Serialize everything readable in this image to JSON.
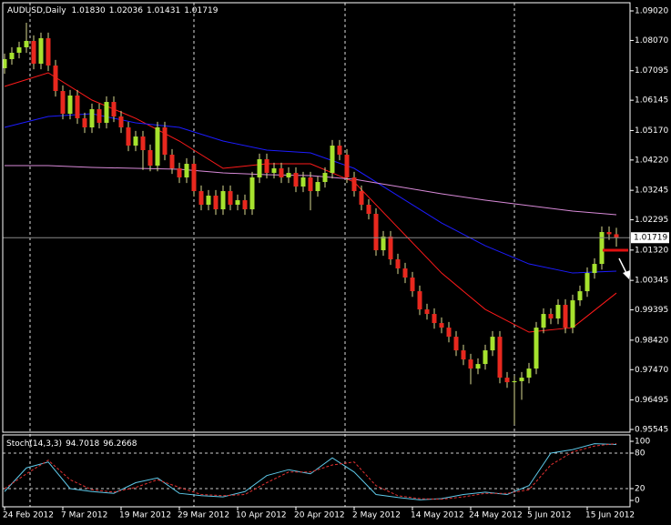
{
  "chart_data": {
    "type": "candlestick",
    "title_symbol": "AUDUSD,Daily",
    "title_ohlc_labels": [
      "1.01830",
      "1.02036",
      "1.01431",
      "1.01719"
    ],
    "categories": [
      "24 Feb 2012",
      null,
      null,
      null,
      null,
      null,
      null,
      null,
      "7 Mar 2012",
      null,
      null,
      null,
      null,
      null,
      null,
      null,
      "19 Mar 2012",
      null,
      null,
      null,
      null,
      null,
      null,
      null,
      "29 Mar 2012",
      null,
      null,
      null,
      null,
      null,
      null,
      null,
      "10 Apr 2012",
      null,
      null,
      null,
      null,
      null,
      null,
      null,
      "20 Apr 2012",
      null,
      null,
      null,
      null,
      null,
      null,
      null,
      "2 May 2012",
      null,
      null,
      null,
      null,
      null,
      null,
      null,
      "14 May 2012",
      null,
      null,
      null,
      null,
      null,
      null,
      null,
      "24 May 2012",
      null,
      null,
      null,
      null,
      null,
      null,
      null,
      "5 Jun 2012",
      null,
      null,
      null,
      null,
      null,
      null,
      null,
      "15 Jun 2012",
      null,
      null,
      null,
      null
    ],
    "open": [
      1.07175,
      1.07468,
      1.07673,
      1.07848,
      1.08054,
      1.07321,
      1.08141,
      1.07262,
      1.06442,
      1.0571,
      1.06296,
      1.05563,
      1.0527,
      1.05856,
      1.05417,
      1.0609,
      1.05622,
      1.0527,
      1.04684,
      1.04977,
      1.04538,
      1.04039,
      1.0527,
      1.04391,
      1.03952,
      1.03659,
      1.04098,
      1.03219,
      1.0278,
      1.03073,
      1.02633,
      1.03219,
      1.0278,
      1.02926,
      1.02633,
      1.03659,
      1.04245,
      1.03805,
      1.03952,
      1.03659,
      1.03805,
      1.03366,
      1.03659,
      1.03219,
      1.03512,
      1.03805,
      1.04684,
      1.04391,
      1.03659,
      1.03219,
      1.0278,
      1.02487,
      1.01315,
      1.01754,
      1.01022,
      1.00729,
      1.00436,
      0.99996,
      0.9941,
      0.99264,
      0.98971,
      0.98824,
      0.98531,
      0.98092,
      0.97799,
      0.97506,
      0.97652,
      0.98092,
      0.98531,
      0.97213,
      0.97066,
      0.971,
      0.97213,
      0.97506,
      0.98824,
      0.99264,
      0.99117,
      0.99557,
      0.98824,
      0.99703,
      0.99996,
      1.00582,
      1.00875,
      1.01901,
      1.0183
    ],
    "high": [
      1.07648,
      1.07853,
      1.08028,
      1.0864,
      1.08234,
      1.08321,
      1.08321,
      1.07442,
      1.06622,
      1.06476,
      1.06476,
      1.05743,
      1.06036,
      1.06036,
      1.0627,
      1.0627,
      1.05802,
      1.0545,
      1.05157,
      1.05157,
      1.04718,
      1.0545,
      1.0545,
      1.04571,
      1.04132,
      1.04278,
      1.04278,
      1.03399,
      1.03253,
      1.03253,
      1.03399,
      1.03399,
      1.03106,
      1.03106,
      1.03839,
      1.04425,
      1.04425,
      1.04132,
      1.04132,
      1.03985,
      1.03985,
      1.03839,
      1.03839,
      1.03692,
      1.03985,
      1.04864,
      1.04864,
      1.04571,
      1.03839,
      1.03399,
      1.0296,
      1.02667,
      1.01934,
      1.01934,
      1.01202,
      1.00909,
      1.00616,
      1.00176,
      0.9959,
      0.99444,
      0.99151,
      0.99004,
      0.98711,
      0.98272,
      0.97979,
      0.97832,
      0.98272,
      0.98711,
      0.98711,
      0.97393,
      0.9728,
      0.97393,
      0.97686,
      0.99004,
      0.99444,
      0.99444,
      0.99737,
      0.99737,
      0.99883,
      1.00176,
      1.00762,
      1.01055,
      1.02081,
      1.02081,
      1.02036
    ],
    "low": [
      1.06995,
      1.07288,
      1.07493,
      1.07668,
      1.07141,
      1.07141,
      1.07082,
      1.06262,
      1.0553,
      1.0553,
      1.05383,
      1.0509,
      1.0509,
      1.05237,
      1.05237,
      1.05442,
      1.0509,
      1.04504,
      1.04504,
      1.039,
      1.03859,
      1.03859,
      1.04211,
      1.03772,
      1.03479,
      1.03479,
      1.03039,
      1.026,
      1.026,
      1.02453,
      1.02453,
      1.026,
      1.026,
      1.02453,
      1.02453,
      1.03479,
      1.03625,
      1.03625,
      1.03479,
      1.03479,
      1.03186,
      1.03186,
      1.026,
      1.03039,
      1.03332,
      1.03625,
      1.04211,
      1.03479,
      1.03039,
      1.026,
      1.02307,
      1.01135,
      1.01135,
      1.00842,
      1.00549,
      1.00256,
      0.99816,
      0.9923,
      0.99084,
      0.98791,
      0.98644,
      0.98351,
      0.97912,
      0.97619,
      0.97,
      0.97326,
      0.97472,
      0.97912,
      0.97033,
      0.96886,
      0.957,
      0.965,
      0.97033,
      0.97326,
      0.98644,
      0.98937,
      0.98937,
      0.98644,
      0.98644,
      0.99523,
      0.99816,
      1.00402,
      1.00695,
      1.0165,
      1.01431
    ],
    "close": [
      1.07468,
      1.07673,
      1.07848,
      1.08054,
      1.07321,
      1.08141,
      1.07262,
      1.06442,
      1.0571,
      1.06296,
      1.05563,
      1.0527,
      1.05856,
      1.05417,
      1.0609,
      1.05622,
      1.0527,
      1.04684,
      1.04977,
      1.04538,
      1.04039,
      1.0527,
      1.04391,
      1.03952,
      1.03659,
      1.04098,
      1.03219,
      1.0278,
      1.03073,
      1.02633,
      1.03219,
      1.0278,
      1.02926,
      1.02633,
      1.03659,
      1.04245,
      1.03805,
      1.03952,
      1.03659,
      1.03805,
      1.03366,
      1.03659,
      1.03219,
      1.03512,
      1.03805,
      1.04684,
      1.04391,
      1.03659,
      1.03219,
      1.0278,
      1.02487,
      1.01315,
      1.01754,
      1.01022,
      1.00729,
      1.00436,
      0.99996,
      0.9941,
      0.99264,
      0.98971,
      0.98824,
      0.98531,
      0.98092,
      0.97799,
      0.97506,
      0.97652,
      0.98092,
      0.98531,
      0.97213,
      0.97066,
      0.971,
      0.97213,
      0.97506,
      0.98824,
      0.99264,
      0.99117,
      0.99557,
      0.98824,
      0.99703,
      0.99996,
      1.00582,
      1.00875,
      1.01901,
      1.0183,
      1.01719
    ],
    "up_color": "#a6e22e",
    "down_color": "#e8281e",
    "wick_color": "#d8d890",
    "ylim": [
      0.95457,
      1.09284
    ],
    "yticks": [
      {
        "value": 1.0902,
        "label": "1.09020"
      },
      {
        "value": 1.0807,
        "label": "1.08070"
      },
      {
        "value": 1.07095,
        "label": "1.07095"
      },
      {
        "value": 1.06145,
        "label": "1.06145"
      },
      {
        "value": 1.0517,
        "label": "1.05170"
      },
      {
        "value": 1.0422,
        "label": "1.04220"
      },
      {
        "value": 1.03245,
        "label": "1.03245"
      },
      {
        "value": 1.02295,
        "label": "1.02295"
      },
      {
        "value": 1.0132,
        "label": "1.01320"
      },
      {
        "value": 1.00345,
        "label": "1.00345"
      },
      {
        "value": 0.99395,
        "label": "0.99395"
      },
      {
        "value": 0.9842,
        "label": "0.98420"
      },
      {
        "value": 0.9747,
        "label": "0.97470"
      },
      {
        "value": 0.96495,
        "label": "0.96495"
      },
      {
        "value": 0.95545,
        "label": "0.95545"
      }
    ],
    "price_line": {
      "value": 1.01719,
      "label": "1.01719"
    },
    "overlays": [
      {
        "color": "#ff1a1a",
        "x": [
          0,
          6,
          12,
          18,
          24,
          30,
          36,
          42,
          48,
          54,
          60,
          66,
          72,
          78,
          84
        ],
        "values": [
          1.06589,
          1.07028,
          1.06149,
          1.05563,
          1.04831,
          1.03952,
          1.04098,
          1.04098,
          1.03512,
          1.02047,
          1.00582,
          0.9941,
          0.98678,
          0.98824,
          0.99937
        ]
      },
      {
        "color": "#1c1cff",
        "x": [
          0,
          6,
          12,
          18,
          24,
          30,
          36,
          42,
          48,
          54,
          60,
          66,
          72,
          78,
          84
        ],
        "values": [
          1.0527,
          1.05622,
          1.0571,
          1.05417,
          1.0527,
          1.04831,
          1.04538,
          1.0445,
          1.03952,
          1.03073,
          1.02194,
          1.01461,
          1.00875,
          1.00582,
          1.00641
        ]
      },
      {
        "color": "#d88ad8",
        "x": [
          0,
          6,
          12,
          18,
          24,
          30,
          36,
          42,
          48,
          54,
          60,
          66,
          72,
          78,
          84
        ],
        "values": [
          1.04039,
          1.04039,
          1.03981,
          1.03952,
          1.03922,
          1.03805,
          1.03746,
          1.03717,
          1.036,
          1.03366,
          1.03131,
          1.02926,
          1.0275,
          1.02574,
          1.02457
        ]
      }
    ],
    "indicator": {
      "type": "line",
      "title": "Stoch(14,3,3)",
      "ylim": [
        -10.8,
        110.8
      ],
      "yticks": [
        100,
        80,
        20,
        0
      ],
      "levels": [
        80,
        20
      ],
      "series": [
        {
          "color": "#5ec8e8",
          "dashed": false,
          "x": [
            0,
            3,
            6,
            9,
            12,
            15,
            18,
            21,
            24,
            27,
            30,
            33,
            36,
            39,
            42,
            45,
            48,
            51,
            54,
            57,
            60,
            63,
            66,
            69,
            72,
            75,
            78,
            81,
            84
          ],
          "values": [
            15,
            55,
            65,
            20,
            15,
            12,
            30,
            38,
            12,
            8,
            6,
            15,
            42,
            52,
            45,
            72,
            48,
            10,
            5,
            1,
            3,
            10,
            14,
            10,
            25,
            80,
            86,
            96,
            94.7018
          ]
        },
        {
          "color": "#e03030",
          "dashed": true,
          "x": [
            0,
            3,
            6,
            9,
            12,
            15,
            18,
            21,
            24,
            27,
            30,
            33,
            36,
            39,
            42,
            45,
            48,
            51,
            54,
            57,
            60,
            63,
            66,
            69,
            72,
            75,
            78,
            81,
            84
          ],
          "values": [
            20,
            45,
            68,
            35,
            18,
            14,
            22,
            35,
            22,
            10,
            8,
            10,
            30,
            48,
            48,
            60,
            65,
            25,
            8,
            3,
            2,
            6,
            12,
            12,
            18,
            60,
            82,
            92,
            96.2668
          ]
        }
      ]
    }
  }
}
